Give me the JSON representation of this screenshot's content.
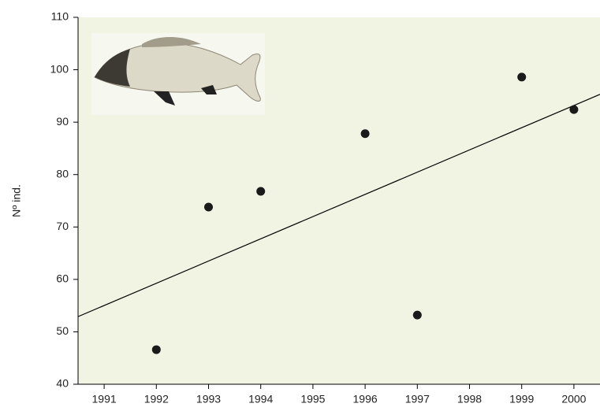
{
  "chart_data": {
    "type": "scatter",
    "y_label": "Nº ind.",
    "points": {
      "x": [
        1992,
        1993,
        1994,
        1996,
        1997,
        1999,
        2000
      ],
      "y": [
        46.6,
        73.8,
        76.8,
        87.8,
        53.2,
        98.6,
        92.4
      ],
      "color": "#1a1a1a"
    },
    "trend": {
      "x": [
        1990.5,
        2000.5
      ],
      "y": [
        52.9,
        95.3
      ],
      "color": "#000000"
    },
    "xlim": [
      1990.5,
      2000.5
    ],
    "xticks": [
      1991,
      1992,
      1993,
      1994,
      1995,
      1996,
      1997,
      1998,
      1999,
      2000
    ],
    "ylim": [
      40,
      110
    ],
    "yticks": [
      40,
      50,
      60,
      70,
      80,
      90,
      100,
      110
    ],
    "plot_background": "#f1f4e2"
  }
}
